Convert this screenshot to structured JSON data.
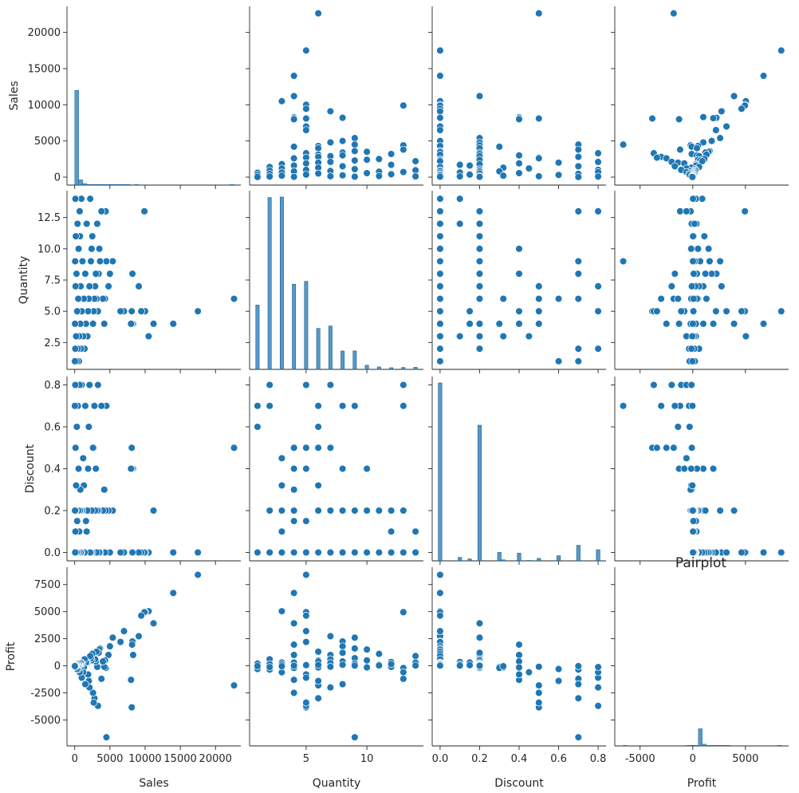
{
  "chart_data": {
    "type": "scatter",
    "title": "Pairplot",
    "variables": [
      "Sales",
      "Quantity",
      "Discount",
      "Profit"
    ],
    "axis_labels": {
      "Sales": "Sales",
      "Quantity": "Quantity",
      "Discount": "Discount",
      "Profit": "Profit"
    },
    "ticks": {
      "Sales": {
        "values": [
          0,
          5000,
          10000,
          15000,
          20000
        ],
        "labels": [
          "0",
          "5000",
          "10000",
          "15000",
          "20000"
        ]
      },
      "Quantity": {
        "values": [
          2.5,
          5.0,
          7.5,
          10.0,
          12.5
        ],
        "labels": [
          "2.5",
          "5.0",
          "7.5",
          "10.0",
          "12.5"
        ],
        "x_values": [
          5,
          10
        ],
        "x_labels": [
          "5",
          "10"
        ]
      },
      "Discount": {
        "values": [
          0.0,
          0.2,
          0.4,
          0.6,
          0.8
        ],
        "labels": [
          "0.0",
          "0.2",
          "0.4",
          "0.6",
          "0.8"
        ]
      },
      "Profit": {
        "values": [
          -5000,
          -2500,
          0,
          2500,
          5000,
          7500
        ],
        "labels": [
          "-5000",
          "-2500",
          "0",
          "2500",
          "5000",
          "7500"
        ],
        "x_values": [
          -5000,
          0,
          5000
        ],
        "x_labels": [
          "-5000",
          "0",
          "5000"
        ]
      }
    },
    "ranges": {
      "Sales": [
        -1100,
        23600
      ],
      "Quantity": [
        0.35,
        14.65
      ],
      "Discount": [
        -0.04,
        0.84
      ],
      "Profit": [
        -7400,
        9100
      ]
    },
    "color": "#1f77b4",
    "histograms": {
      "Sales": {
        "bins": 40,
        "counts": [
          9000,
          500,
          150,
          70,
          40,
          20,
          10,
          6,
          4,
          3,
          2,
          1,
          1,
          1,
          0,
          1,
          0,
          0,
          0,
          0,
          0,
          0,
          0,
          0,
          0,
          0,
          0,
          0,
          0,
          0,
          0,
          0,
          0,
          0,
          0,
          0,
          0,
          0,
          0,
          1
        ]
      },
      "Quantity": {
        "values": [
          1,
          2,
          3,
          4,
          5,
          6,
          7,
          8,
          9,
          10,
          11,
          12,
          13,
          14
        ],
        "counts": [
          899,
          2402,
          2409,
          1191,
          1230,
          572,
          606,
          257,
          258,
          57,
          34,
          23,
          27,
          29
        ]
      },
      "Discount": {
        "values": [
          0.0,
          0.1,
          0.15,
          0.2,
          0.3,
          0.32,
          0.4,
          0.45,
          0.5,
          0.6,
          0.7,
          0.8
        ],
        "counts": [
          4798,
          94,
          52,
          3657,
          227,
          27,
          206,
          11,
          66,
          138,
          418,
          300
        ]
      },
      "Profit": {
        "bins": 40,
        "counts": [
          1,
          0,
          0,
          0,
          0,
          0,
          0,
          0,
          0,
          0,
          0,
          0,
          0,
          0,
          0,
          0,
          2,
          5,
          30,
          9000,
          900,
          40,
          10,
          4,
          2,
          1,
          1,
          0,
          0,
          0,
          0,
          0,
          0,
          0,
          0,
          0,
          0,
          0,
          0,
          1
        ]
      }
    },
    "points": [
      {
        "Sales": 22638,
        "Quantity": 6,
        "Discount": 0.5,
        "Profit": -1811
      },
      {
        "Sales": 17500,
        "Quantity": 5,
        "Discount": 0.0,
        "Profit": 8400
      },
      {
        "Sales": 14000,
        "Quantity": 4,
        "Discount": 0.0,
        "Profit": 6720
      },
      {
        "Sales": 11200,
        "Quantity": 4,
        "Discount": 0.2,
        "Profit": 3920
      },
      {
        "Sales": 10500,
        "Quantity": 3,
        "Discount": 0.0,
        "Profit": 5040
      },
      {
        "Sales": 10000,
        "Quantity": 5,
        "Discount": 0.0,
        "Profit": 4950
      },
      {
        "Sales": 9900,
        "Quantity": 13,
        "Discount": 0.0,
        "Profit": 4950
      },
      {
        "Sales": 9450,
        "Quantity": 5,
        "Discount": 0.0,
        "Profit": 4630
      },
      {
        "Sales": 9100,
        "Quantity": 7,
        "Discount": 0.0,
        "Profit": 2730
      },
      {
        "Sales": 8300,
        "Quantity": 4,
        "Discount": 0.4,
        "Profit": 1000
      },
      {
        "Sales": 8200,
        "Quantity": 8,
        "Discount": 0.0,
        "Profit": 2250
      },
      {
        "Sales": 8150,
        "Quantity": 4,
        "Discount": 0.4,
        "Profit": 1950
      },
      {
        "Sales": 8100,
        "Quantity": 5,
        "Discount": 0.5,
        "Profit": -3840
      },
      {
        "Sales": 8000,
        "Quantity": 4,
        "Discount": 0.4,
        "Profit": -1300
      },
      {
        "Sales": 7000,
        "Quantity": 5,
        "Discount": 0.0,
        "Profit": 3200
      },
      {
        "Sales": 6500,
        "Quantity": 5,
        "Discount": 0.0,
        "Profit": 2200
      },
      {
        "Sales": 5400,
        "Quantity": 9,
        "Discount": 0.2,
        "Profit": 2600
      },
      {
        "Sales": 5000,
        "Quantity": 8,
        "Discount": 0.0,
        "Profit": 1800
      },
      {
        "Sales": 4800,
        "Quantity": 7,
        "Discount": 0.2,
        "Profit": 1000
      },
      {
        "Sales": 4500,
        "Quantity": 9,
        "Discount": 0.7,
        "Profit": -6600
      },
      {
        "Sales": 4400,
        "Quantity": 13,
        "Discount": 0.2,
        "Profit": -200
      },
      {
        "Sales": 4300,
        "Quantity": 6,
        "Discount": 0.0,
        "Profit": 500
      },
      {
        "Sales": 4200,
        "Quantity": 4,
        "Discount": 0.3,
        "Profit": -100
      },
      {
        "Sales": 4000,
        "Quantity": 6,
        "Discount": 0.2,
        "Profit": 400
      },
      {
        "Sales": 3800,
        "Quantity": 13,
        "Discount": 0.7,
        "Profit": -1200
      },
      {
        "Sales": 3600,
        "Quantity": 9,
        "Discount": 0.0,
        "Profit": 1600
      },
      {
        "Sales": 3500,
        "Quantity": 10,
        "Discount": 0.0,
        "Profit": 1500
      },
      {
        "Sales": 3400,
        "Quantity": 8,
        "Discount": 0.2,
        "Profit": 1200
      },
      {
        "Sales": 3300,
        "Quantity": 5,
        "Discount": 0.8,
        "Profit": -3700
      },
      {
        "Sales": 3200,
        "Quantity": 12,
        "Discount": 0.2,
        "Profit": -100
      },
      {
        "Sales": 3100,
        "Quantity": 6,
        "Discount": 0.0,
        "Profit": 1300
      },
      {
        "Sales": 3000,
        "Quantity": 8,
        "Discount": 0.4,
        "Profit": 400
      },
      {
        "Sales": 2900,
        "Quantity": 7,
        "Discount": 0.2,
        "Profit": 600
      },
      {
        "Sales": 2800,
        "Quantity": 6,
        "Discount": 0.7,
        "Profit": -3000
      },
      {
        "Sales": 2700,
        "Quantity": 5,
        "Discount": 0.5,
        "Profit": -3400
      },
      {
        "Sales": 2600,
        "Quantity": 4,
        "Discount": 0.5,
        "Profit": -2500
      },
      {
        "Sales": 2500,
        "Quantity": 11,
        "Discount": 0.0,
        "Profit": 1100
      },
      {
        "Sales": 2400,
        "Quantity": 10,
        "Discount": 0.2,
        "Profit": 500
      },
      {
        "Sales": 2300,
        "Quantity": 9,
        "Discount": 0.0,
        "Profit": 700
      },
      {
        "Sales": 2200,
        "Quantity": 14,
        "Discount": 0.0,
        "Profit": 900
      },
      {
        "Sales": 2100,
        "Quantity": 7,
        "Discount": 0.8,
        "Profit": -2000
      },
      {
        "Sales": 2000,
        "Quantity": 6,
        "Discount": 0.6,
        "Profit": -1400
      },
      {
        "Sales": 1900,
        "Quantity": 5,
        "Discount": 0.4,
        "Profit": -800
      },
      {
        "Sales": 1800,
        "Quantity": 3,
        "Discount": 0.2,
        "Profit": 300
      },
      {
        "Sales": 1700,
        "Quantity": 12,
        "Discount": 0.1,
        "Profit": 350
      },
      {
        "Sales": 1600,
        "Quantity": 4,
        "Discount": 0.15,
        "Profit": 300
      },
      {
        "Sales": 1500,
        "Quantity": 8,
        "Discount": 0.7,
        "Profit": -1700
      },
      {
        "Sales": 1400,
        "Quantity": 2,
        "Discount": 0.0,
        "Profit": 600
      },
      {
        "Sales": 1300,
        "Quantity": 6,
        "Discount": 0.32,
        "Profit": -150
      },
      {
        "Sales": 1200,
        "Quantity": 3,
        "Discount": 0.45,
        "Profit": -600
      },
      {
        "Sales": 1100,
        "Quantity": 9,
        "Discount": 0.2,
        "Profit": 200
      },
      {
        "Sales": 1000,
        "Quantity": 5,
        "Discount": 0.8,
        "Profit": -1100
      },
      {
        "Sales": 950,
        "Quantity": 14,
        "Discount": 0.0,
        "Profit": 300
      },
      {
        "Sales": 900,
        "Quantity": 2,
        "Discount": 0.2,
        "Profit": 150
      },
      {
        "Sales": 850,
        "Quantity": 7,
        "Discount": 0.0,
        "Profit": 250
      },
      {
        "Sales": 800,
        "Quantity": 4,
        "Discount": 0.3,
        "Profit": -200
      },
      {
        "Sales": 750,
        "Quantity": 11,
        "Discount": 0.2,
        "Profit": 100
      },
      {
        "Sales": 700,
        "Quantity": 13,
        "Discount": 0.8,
        "Profit": -600
      },
      {
        "Sales": 650,
        "Quantity": 3,
        "Discount": 0.1,
        "Profit": 120
      },
      {
        "Sales": 600,
        "Quantity": 1,
        "Discount": 0.0,
        "Profit": 200
      },
      {
        "Sales": 550,
        "Quantity": 10,
        "Discount": 0.4,
        "Profit": -150
      },
      {
        "Sales": 500,
        "Quantity": 6,
        "Discount": 0.2,
        "Profit": 80
      },
      {
        "Sales": 450,
        "Quantity": 2,
        "Discount": 0.7,
        "Profit": -350
      },
      {
        "Sales": 400,
        "Quantity": 12,
        "Discount": 0.0,
        "Profit": 160
      },
      {
        "Sales": 350,
        "Quantity": 5,
        "Discount": 0.15,
        "Profit": 60
      },
      {
        "Sales": 300,
        "Quantity": 1,
        "Discount": 0.6,
        "Profit": -300
      },
      {
        "Sales": 250,
        "Quantity": 8,
        "Discount": 0.0,
        "Profit": 90
      },
      {
        "Sales": 200,
        "Quantity": 3,
        "Discount": 0.32,
        "Profit": -40
      },
      {
        "Sales": 150,
        "Quantity": 11,
        "Discount": 0.2,
        "Profit": 30
      },
      {
        "Sales": 120,
        "Quantity": 7,
        "Discount": 0.5,
        "Profit": -90
      },
      {
        "Sales": 100,
        "Quantity": 14,
        "Discount": 0.1,
        "Profit": 25
      },
      {
        "Sales": 80,
        "Quantity": 2,
        "Discount": 0.8,
        "Profit": -120
      },
      {
        "Sales": 60,
        "Quantity": 9,
        "Discount": 0.0,
        "Profit": 20
      },
      {
        "Sales": 40,
        "Quantity": 4,
        "Discount": 0.2,
        "Profit": 10
      },
      {
        "Sales": 20,
        "Quantity": 1,
        "Discount": 0.7,
        "Profit": -30
      }
    ]
  }
}
